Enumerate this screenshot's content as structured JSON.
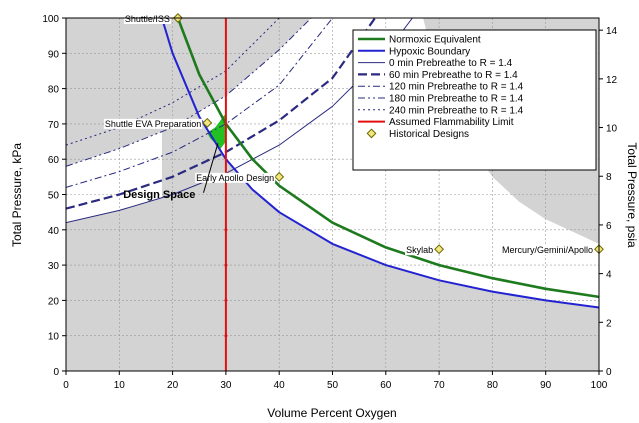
{
  "chart_data": {
    "type": "line",
    "xlabel": "Volume Percent Oxygen",
    "ylabel": "Total Pressure, kPa",
    "ylabel_right": "Total Pressure, psia",
    "xlim": [
      0,
      100
    ],
    "ylim": [
      0,
      100
    ],
    "ylim_right": [
      0,
      14.5
    ],
    "x_ticks": [
      0,
      10,
      20,
      30,
      40,
      50,
      60,
      70,
      80,
      90,
      100
    ],
    "y_ticks": [
      0,
      10,
      20,
      30,
      40,
      50,
      60,
      70,
      80,
      90,
      100
    ],
    "y_ticks_right": [
      0,
      2,
      4,
      6,
      8,
      10,
      12,
      14
    ],
    "grid": true,
    "legend_position": "top-right",
    "series": [
      {
        "name": "Normoxic Equivalent",
        "color": "#1e7a1e",
        "style": "solid",
        "width": 2.6,
        "x": [
          21,
          25,
          30,
          35,
          40,
          50,
          60,
          70,
          80,
          90,
          100
        ],
        "y": [
          100,
          84,
          70,
          60,
          52.5,
          42,
          35,
          30,
          26.3,
          23.3,
          21
        ]
      },
      {
        "name": "Hypoxic Boundary",
        "color": "#2323d2",
        "style": "solid",
        "width": 2,
        "x": [
          18,
          20,
          25,
          30,
          35,
          40,
          50,
          60,
          70,
          80,
          90,
          100
        ],
        "y": [
          100,
          90,
          72,
          60,
          51.4,
          45,
          36,
          30,
          25.7,
          22.5,
          20,
          18
        ]
      },
      {
        "name": "0 min Prebreathe to R = 1.4",
        "color": "#2a2a80",
        "style": "thin",
        "width": 1,
        "x": [
          0,
          10,
          20,
          30,
          40,
          50,
          60,
          65
        ],
        "y": [
          42,
          45.5,
          50,
          56,
          64,
          75,
          90,
          100
        ]
      },
      {
        "name": "60 min Prebreathe to R = 1.4",
        "color": "#2a2a80",
        "style": "dash",
        "width": 2.2,
        "x": [
          0,
          10,
          20,
          30,
          40,
          50,
          58
        ],
        "y": [
          46,
          50,
          55,
          62,
          71,
          83,
          100
        ]
      },
      {
        "name": "120 min Prebreathe to R = 1.4",
        "color": "#2a2a80",
        "style": "dashdot",
        "width": 1,
        "x": [
          0,
          10,
          20,
          30,
          40,
          50
        ],
        "y": [
          52,
          56.5,
          62,
          70,
          81,
          100
        ]
      },
      {
        "name": "180 min Prebreathe to R = 1.4",
        "color": "#2a2a80",
        "style": "dashdotdot",
        "width": 1,
        "x": [
          0,
          10,
          20,
          30,
          40,
          46
        ],
        "y": [
          58,
          63,
          69,
          78,
          91,
          100
        ]
      },
      {
        "name": "240 min Prebreathe to R = 1.4",
        "color": "#2a2a80",
        "style": "dot",
        "width": 1,
        "x": [
          0,
          10,
          20,
          30,
          40
        ],
        "y": [
          64,
          69,
          76,
          85,
          100
        ]
      },
      {
        "name": "Assumed Flammability Limit",
        "color": "#e01010",
        "style": "solid",
        "width": 2,
        "x": [
          30,
          30
        ],
        "y": [
          0,
          100
        ]
      }
    ],
    "historical_designs": {
      "legend": "Historical Designs",
      "points": [
        {
          "label": "Shuttle/ISS",
          "x": 21,
          "y": 101.3
        },
        {
          "label": "Shuttle EVA Preparation",
          "x": 26.5,
          "y": 70.3
        },
        {
          "label": "Early Apollo Design",
          "x": 40,
          "y": 55
        },
        {
          "label": "Skylab",
          "x": 70,
          "y": 34.5
        },
        {
          "label": "Mercury/Gemini/Apollo",
          "x": 100,
          "y": 34.5
        }
      ]
    },
    "annotations": [
      {
        "text": "Design Space",
        "x": 30,
        "y": 60
      }
    ],
    "regions": {
      "design_space": {
        "color": "#22c022",
        "x": [
          26.5,
          28,
          30,
          30,
          29,
          27
        ],
        "y": [
          67.5,
          69,
          73,
          65,
          63,
          66
        ]
      },
      "shaded_upper_left_boundary": {
        "x": [
          0,
          10,
          20,
          30,
          40,
          46
        ],
        "y": [
          58,
          63,
          69,
          78,
          91,
          100
        ]
      },
      "shaded_lower_left_boundary": {
        "x": [
          0,
          10,
          20,
          30
        ],
        "y": [
          42,
          45.5,
          50,
          56
        ]
      },
      "shaded_right_boundary": {
        "x": [
          67,
          70,
          75,
          80,
          85,
          90,
          100
        ],
        "y": [
          100,
          82,
          66,
          55,
          48,
          43,
          36
        ]
      }
    }
  }
}
